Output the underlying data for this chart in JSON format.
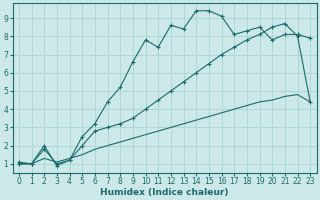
{
  "xlabel": "Humidex (Indice chaleur)",
  "xlim": [
    -0.5,
    23.5
  ],
  "ylim": [
    0.5,
    9.8
  ],
  "xticks": [
    0,
    1,
    2,
    3,
    4,
    5,
    6,
    7,
    8,
    9,
    10,
    11,
    12,
    13,
    14,
    15,
    16,
    17,
    18,
    19,
    20,
    21,
    22,
    23
  ],
  "yticks": [
    1,
    2,
    3,
    4,
    5,
    6,
    7,
    8,
    9
  ],
  "bg_color": "#cce8e8",
  "line_color": "#1a6b6b",
  "grid_color": "#aad4d4",
  "line1_x": [
    0,
    1,
    2,
    3,
    4,
    5,
    6,
    7,
    8,
    9,
    10,
    11,
    12,
    13,
    14,
    15,
    16,
    17,
    18,
    19,
    20,
    21,
    22,
    23
  ],
  "line1_y": [
    1.1,
    1.0,
    2.0,
    0.9,
    1.2,
    2.5,
    3.2,
    4.4,
    5.2,
    6.6,
    7.8,
    7.4,
    8.6,
    8.4,
    9.4,
    9.4,
    9.1,
    8.1,
    8.3,
    8.5,
    7.8,
    8.1,
    8.1,
    7.9
  ],
  "line2_x": [
    0,
    1,
    2,
    3,
    4,
    5,
    6,
    7,
    8,
    9,
    10,
    11,
    12,
    13,
    14,
    15,
    16,
    17,
    18,
    19,
    20,
    21,
    22,
    23
  ],
  "line2_y": [
    1.0,
    1.0,
    1.8,
    1.0,
    1.2,
    2.0,
    2.8,
    3.0,
    3.2,
    3.5,
    4.0,
    4.5,
    5.0,
    5.5,
    6.0,
    6.5,
    7.0,
    7.4,
    7.8,
    8.1,
    8.5,
    8.7,
    8.0,
    4.4
  ],
  "line3_x": [
    0,
    1,
    2,
    3,
    4,
    5,
    6,
    7,
    8,
    9,
    10,
    11,
    12,
    13,
    14,
    15,
    16,
    17,
    18,
    19,
    20,
    21,
    22,
    23
  ],
  "line3_y": [
    1.0,
    1.0,
    1.3,
    1.1,
    1.3,
    1.5,
    1.8,
    2.0,
    2.2,
    2.4,
    2.6,
    2.8,
    3.0,
    3.2,
    3.4,
    3.6,
    3.8,
    4.0,
    4.2,
    4.4,
    4.5,
    4.7,
    4.8,
    4.4
  ]
}
